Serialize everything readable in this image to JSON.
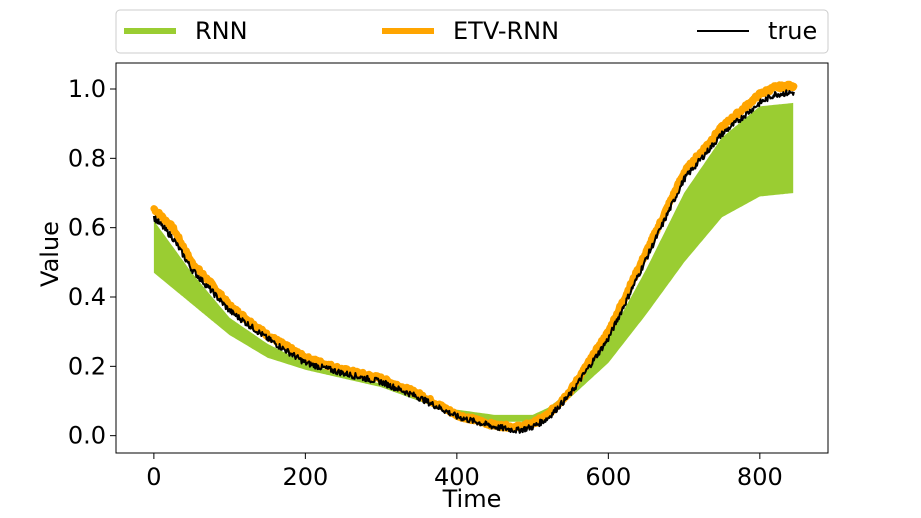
{
  "chart_data": {
    "type": "line",
    "title": "",
    "xlabel": "Time",
    "ylabel": "Value",
    "xlim": [
      -50,
      890
    ],
    "ylim": [
      -0.05,
      1.075
    ],
    "xticks": [
      0,
      200,
      400,
      600,
      800
    ],
    "yticks": [
      0.0,
      0.2,
      0.4,
      0.6,
      0.8,
      1.0
    ],
    "xtick_labels": [
      "0",
      "200",
      "400",
      "600",
      "800"
    ],
    "ytick_labels": [
      "0.0",
      "0.2",
      "0.4",
      "0.6",
      "0.8",
      "1.0"
    ],
    "grid": false,
    "legend_position": "top",
    "x_range": [
      0,
      845
    ],
    "series": [
      {
        "name": "RNN",
        "color": "#9acd32",
        "style": "oscillating band",
        "upper_x": [
          0,
          50,
          100,
          150,
          200,
          250,
          300,
          350,
          400,
          450,
          500,
          520,
          550,
          600,
          650,
          700,
          750,
          800,
          845
        ],
        "upper": [
          0.62,
          0.47,
          0.34,
          0.265,
          0.21,
          0.175,
          0.15,
          0.11,
          0.075,
          0.06,
          0.06,
          0.08,
          0.13,
          0.28,
          0.48,
          0.7,
          0.86,
          0.95,
          0.96
        ],
        "lower_x": [
          0,
          50,
          100,
          150,
          200,
          250,
          300,
          350,
          400,
          450,
          500,
          520,
          550,
          600,
          650,
          700,
          750,
          800,
          845
        ],
        "lower": [
          0.47,
          0.38,
          0.29,
          0.225,
          0.19,
          0.165,
          0.14,
          0.1,
          0.06,
          0.04,
          0.04,
          0.06,
          0.11,
          0.21,
          0.35,
          0.5,
          0.63,
          0.69,
          0.7
        ]
      },
      {
        "name": "ETV-RNN",
        "color": "#ffa500",
        "style": "thick line",
        "x": [
          0,
          25,
          50,
          75,
          100,
          150,
          200,
          250,
          300,
          350,
          400,
          450,
          480,
          500,
          520,
          550,
          600,
          650,
          700,
          750,
          800,
          820,
          845
        ],
        "values": [
          0.655,
          0.6,
          0.5,
          0.44,
          0.375,
          0.29,
          0.225,
          0.19,
          0.165,
          0.12,
          0.06,
          0.03,
          0.025,
          0.035,
          0.06,
          0.13,
          0.3,
          0.53,
          0.76,
          0.89,
          0.985,
          1.005,
          1.01
        ]
      },
      {
        "name": "true",
        "color": "#000000",
        "style": "thin noisy line",
        "x": [
          0,
          25,
          50,
          75,
          100,
          150,
          200,
          250,
          300,
          350,
          400,
          450,
          480,
          500,
          520,
          550,
          600,
          650,
          700,
          750,
          800,
          820,
          845
        ],
        "values": [
          0.63,
          0.57,
          0.48,
          0.42,
          0.36,
          0.28,
          0.21,
          0.18,
          0.155,
          0.11,
          0.055,
          0.025,
          0.015,
          0.025,
          0.05,
          0.12,
          0.28,
          0.51,
          0.74,
          0.87,
          0.96,
          0.985,
          0.99
        ]
      }
    ]
  }
}
